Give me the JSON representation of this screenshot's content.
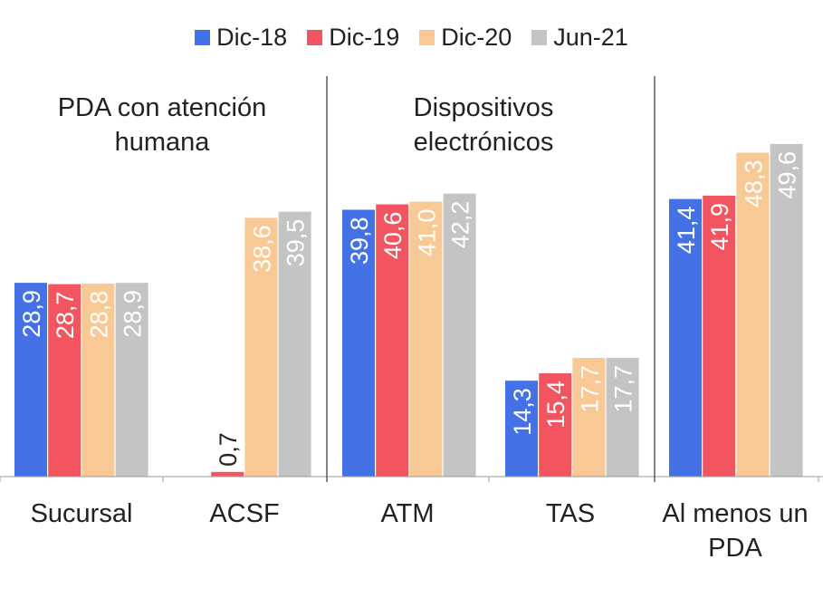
{
  "chart_data": {
    "type": "bar",
    "title": "",
    "xlabel": "",
    "ylabel": "",
    "ylim": [
      0,
      55
    ],
    "grid": false,
    "legend_position": "top-center",
    "categories": [
      "Sucursal",
      "ACSF",
      "ATM",
      "TAS",
      "Al menos un PDA"
    ],
    "group_titles": [
      "PDA con atención humana",
      "Dispositivos electrónicos"
    ],
    "series": [
      {
        "name": "Dic-18",
        "color": "#4472e6",
        "values": [
          28.9,
          null,
          39.8,
          14.3,
          41.4
        ],
        "labels": [
          "28,9",
          "",
          "39,8",
          "14,3",
          "41,4"
        ]
      },
      {
        "name": "Dic-19",
        "color": "#f2555f",
        "values": [
          28.7,
          0.7,
          40.6,
          15.4,
          41.9
        ],
        "labels": [
          "28,7",
          "0,7",
          "40,6",
          "15,4",
          "41,9"
        ]
      },
      {
        "name": "Dic-20",
        "color": "#f9c995",
        "values": [
          28.8,
          38.6,
          41.0,
          17.7,
          48.3
        ],
        "labels": [
          "28,8",
          "38,6",
          "41,0",
          "17,7",
          "48,3"
        ]
      },
      {
        "name": "Jun-21",
        "color": "#c4c4c4",
        "values": [
          28.9,
          39.5,
          42.2,
          17.7,
          49.6
        ],
        "labels": [
          "28,9",
          "39,5",
          "42,2",
          "17,7",
          "49,6"
        ]
      }
    ]
  }
}
